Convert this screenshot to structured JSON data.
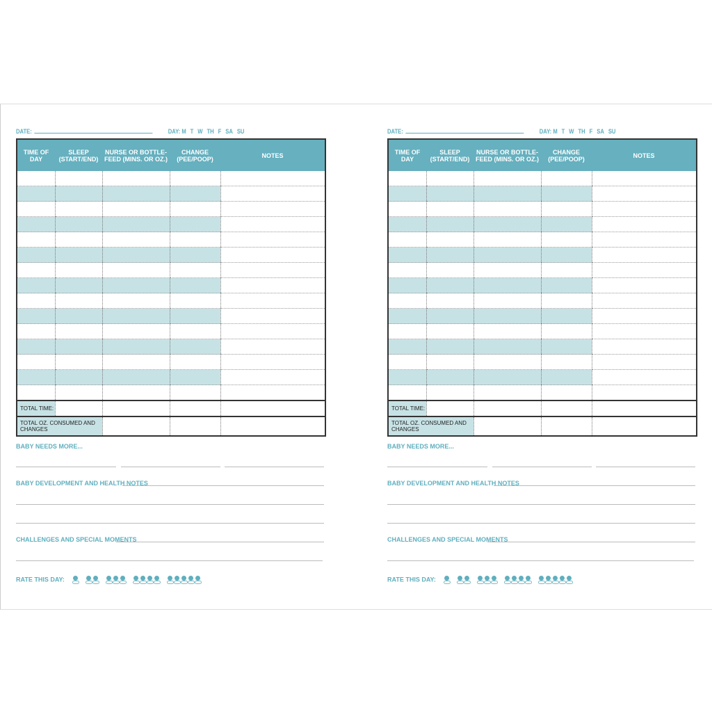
{
  "page": {
    "date_label": "DATE:",
    "day_label": "DAY:",
    "days": [
      "M",
      "T",
      "W",
      "TH",
      "F",
      "SA",
      "SU"
    ],
    "columns": [
      "TIME OF DAY",
      "SLEEP (START/END)",
      "NURSE OR BOTTLE-FEED (MINS. OR OZ.)",
      "CHANGE (PEE/POOP)",
      "NOTES"
    ],
    "total_time": "TOTAL TIME:",
    "total_oz": "TOTAL OZ. CONSUMED AND CHANGES",
    "baby_needs": "BABY NEEDS MORE...",
    "development": "BABY DEVELOPMENT AND HEALTH NOTES",
    "challenges": "CHALLENGES AND SPECIAL MOMENTS",
    "rate": "RATE THIS DAY:",
    "rating_levels": [
      1,
      2,
      3,
      4,
      5
    ],
    "rating_icon": "pacifier-icon"
  },
  "colors": {
    "accent": "#66b0bf",
    "shade": "#c7e2e5"
  }
}
